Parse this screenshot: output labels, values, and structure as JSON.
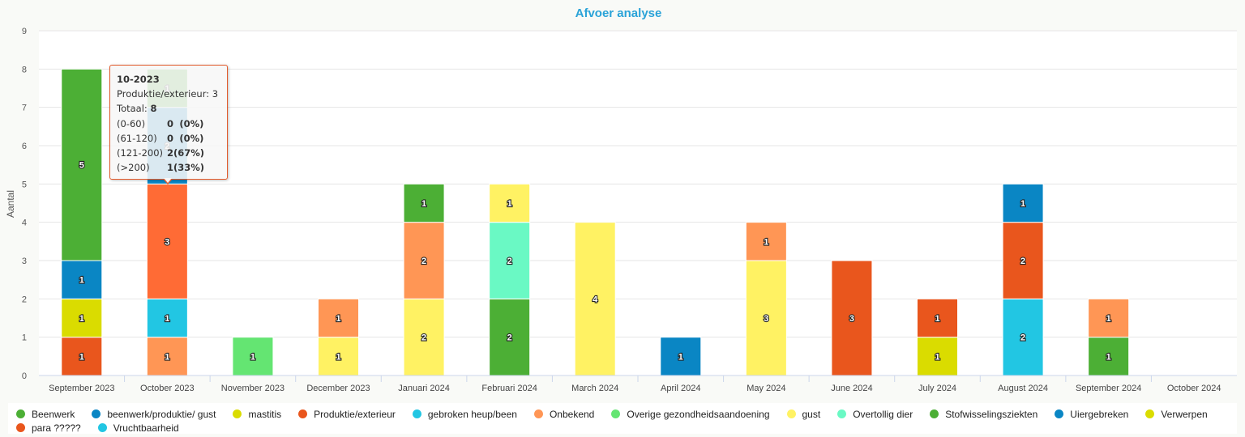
{
  "chart_data": {
    "type": "bar",
    "stacked": true,
    "title": "Afvoer analyse",
    "ylabel": "Aantal",
    "xlabel": "",
    "ylim": [
      0,
      9
    ],
    "yticks": [
      0,
      1,
      2,
      3,
      4,
      5,
      6,
      7,
      8,
      9
    ],
    "grid": true,
    "legend_position": "bottom",
    "categories": [
      "September 2023",
      "October 2023",
      "November 2023",
      "December 2023",
      "Januari 2024",
      "Februari 2024",
      "March 2024",
      "April 2024",
      "May 2024",
      "June 2024",
      "July 2024",
      "August 2024",
      "September 2024",
      "October 2024"
    ],
    "series": [
      {
        "name": "Beenwerk",
        "color": "#4caf35",
        "values": [
          5,
          0,
          0,
          0,
          1,
          0,
          0,
          0,
          0,
          0,
          0,
          0,
          0,
          0
        ]
      },
      {
        "name": "beenwerk/produktie/ gust",
        "color": "#0a86c4",
        "values": [
          1,
          0,
          0,
          0,
          0,
          0,
          0,
          0,
          0,
          0,
          0,
          0,
          0,
          0
        ]
      },
      {
        "name": "mastitis",
        "color": "#dadc00",
        "values": [
          1,
          0,
          0,
          0,
          0,
          0,
          0,
          0,
          0,
          0,
          0,
          0,
          0,
          0
        ]
      },
      {
        "name": "Produktie/exterieur",
        "color": "#ff6b35",
        "values": [
          0,
          3,
          0,
          0,
          0,
          0,
          0,
          0,
          0,
          0,
          0,
          0,
          0,
          0
        ]
      },
      {
        "name": "gebroken heup/been",
        "color": "#22c6e3",
        "values": [
          0,
          1,
          0,
          0,
          0,
          0,
          0,
          0,
          0,
          0,
          0,
          0,
          0,
          0
        ]
      },
      {
        "name": "Onbekend",
        "color": "#ff9655",
        "values": [
          0,
          1,
          0,
          1,
          2,
          0,
          0,
          0,
          1,
          0,
          0,
          0,
          1,
          0
        ]
      },
      {
        "name": "Overige gezondheidsaandoening",
        "color": "#64e572",
        "values": [
          0,
          0,
          1,
          0,
          0,
          0,
          0,
          0,
          0,
          0,
          0,
          0,
          0,
          0
        ]
      },
      {
        "name": "gust",
        "color": "#fff263",
        "values": [
          0,
          0,
          0,
          1,
          2,
          1,
          4,
          0,
          3,
          0,
          0,
          0,
          0,
          0
        ]
      },
      {
        "name": "Overtollig dier",
        "color": "#6af9c4",
        "values": [
          0,
          0,
          0,
          0,
          0,
          2,
          0,
          0,
          0,
          0,
          0,
          0,
          0,
          0
        ]
      },
      {
        "name": "Stofwisselingsziekten",
        "color": "#4caf35",
        "values": [
          0,
          0,
          0,
          0,
          0,
          2,
          0,
          0,
          0,
          0,
          0,
          0,
          1,
          0
        ]
      },
      {
        "name": "Uiergebreken",
        "color": "#0a86c4",
        "values": [
          0,
          0,
          0,
          0,
          0,
          0,
          0,
          1,
          0,
          0,
          0,
          1,
          0,
          0
        ]
      },
      {
        "name": "Verwerpen",
        "color": "#dadc00",
        "values": [
          0,
          0,
          0,
          0,
          0,
          0,
          0,
          0,
          0,
          0,
          1,
          0,
          0,
          0
        ]
      },
      {
        "name": "para ?????",
        "color": "#e9561d",
        "values": [
          0,
          0,
          0,
          0,
          0,
          0,
          0,
          0,
          0,
          3,
          1,
          2,
          0,
          0
        ]
      },
      {
        "name": "Vruchtbaarheid",
        "color": "#22c6e3",
        "values": [
          0,
          0,
          0,
          0,
          0,
          0,
          0,
          0,
          0,
          0,
          0,
          2,
          0,
          0
        ]
      }
    ],
    "stacks": [
      [
        [
          "mastitis-red",
          1
        ],
        [
          "mastitis",
          1
        ],
        [
          "beenwerk/produktie/ gust",
          1
        ],
        [
          "Beenwerk",
          5
        ]
      ],
      [
        [
          "Onbekend",
          1
        ],
        [
          "gebroken heup/been",
          1
        ],
        [
          "Produktie/exterieur",
          3
        ],
        [
          "hidden",
          2
        ],
        [
          "hidden2",
          1
        ]
      ],
      [
        [
          "Overige gezondheidsaandoening",
          1
        ]
      ],
      [
        [
          "gust",
          1
        ],
        [
          "Onbekend",
          1
        ]
      ],
      [
        [
          "gust",
          2
        ],
        [
          "Onbekend",
          2
        ],
        [
          "Beenwerk",
          1
        ]
      ],
      [
        [
          "Stofwisselingsziekten",
          2
        ],
        [
          "Overtollig dier",
          2
        ],
        [
          "gust",
          1
        ]
      ],
      [
        [
          "gust",
          4
        ]
      ],
      [
        [
          "Uiergebreken",
          1
        ]
      ],
      [
        [
          "gust",
          3
        ],
        [
          "Onbekend",
          1
        ]
      ],
      [
        [
          "para ?????",
          3
        ]
      ],
      [
        [
          "Verwerpen",
          1
        ],
        [
          "para ?????",
          1
        ]
      ],
      [
        [
          "Vruchtbaarheid",
          2
        ],
        [
          "para ?????",
          2
        ],
        [
          "Uiergebreken",
          1
        ]
      ],
      [
        [
          "Stofwisselingsziekten",
          1
        ],
        [
          "Onbekend",
          1
        ]
      ],
      []
    ]
  },
  "tooltip": {
    "title": "10-2023",
    "line1": "Produktie/exterieur: 3",
    "total_label": "Totaal:",
    "total_value": "8",
    "rows": [
      {
        "label": "(0-60)",
        "value": "0",
        "pct": "(0%)"
      },
      {
        "label": "(61-120)",
        "value": "0",
        "pct": "(0%)"
      },
      {
        "label": "(121-200)",
        "value": "2",
        "pct": "(67%)"
      },
      {
        "label": "(>200)",
        "value": "1",
        "pct": "(33%)"
      }
    ]
  },
  "legend": [
    {
      "name": "Beenwerk",
      "color": "#4caf35"
    },
    {
      "name": "beenwerk/produktie/ gust",
      "color": "#0a86c4"
    },
    {
      "name": "mastitis",
      "color": "#dadc00"
    },
    {
      "name": "Produktie/exterieur",
      "color": "#e9561d"
    },
    {
      "name": "gebroken heup/been",
      "color": "#22c6e3"
    },
    {
      "name": "Onbekend",
      "color": "#ff9655"
    },
    {
      "name": "Overige gezondheidsaandoening",
      "color": "#64e572"
    },
    {
      "name": "gust",
      "color": "#fff263"
    },
    {
      "name": "Overtollig dier",
      "color": "#6af9c4"
    },
    {
      "name": "Stofwisselingsziekten",
      "color": "#4caf35"
    },
    {
      "name": "Uiergebreken",
      "color": "#0a86c4"
    },
    {
      "name": "Verwerpen",
      "color": "#dadc00"
    },
    {
      "name": "para ?????",
      "color": "#e9561d"
    },
    {
      "name": "Vruchtbaarheid",
      "color": "#22c6e3"
    }
  ]
}
